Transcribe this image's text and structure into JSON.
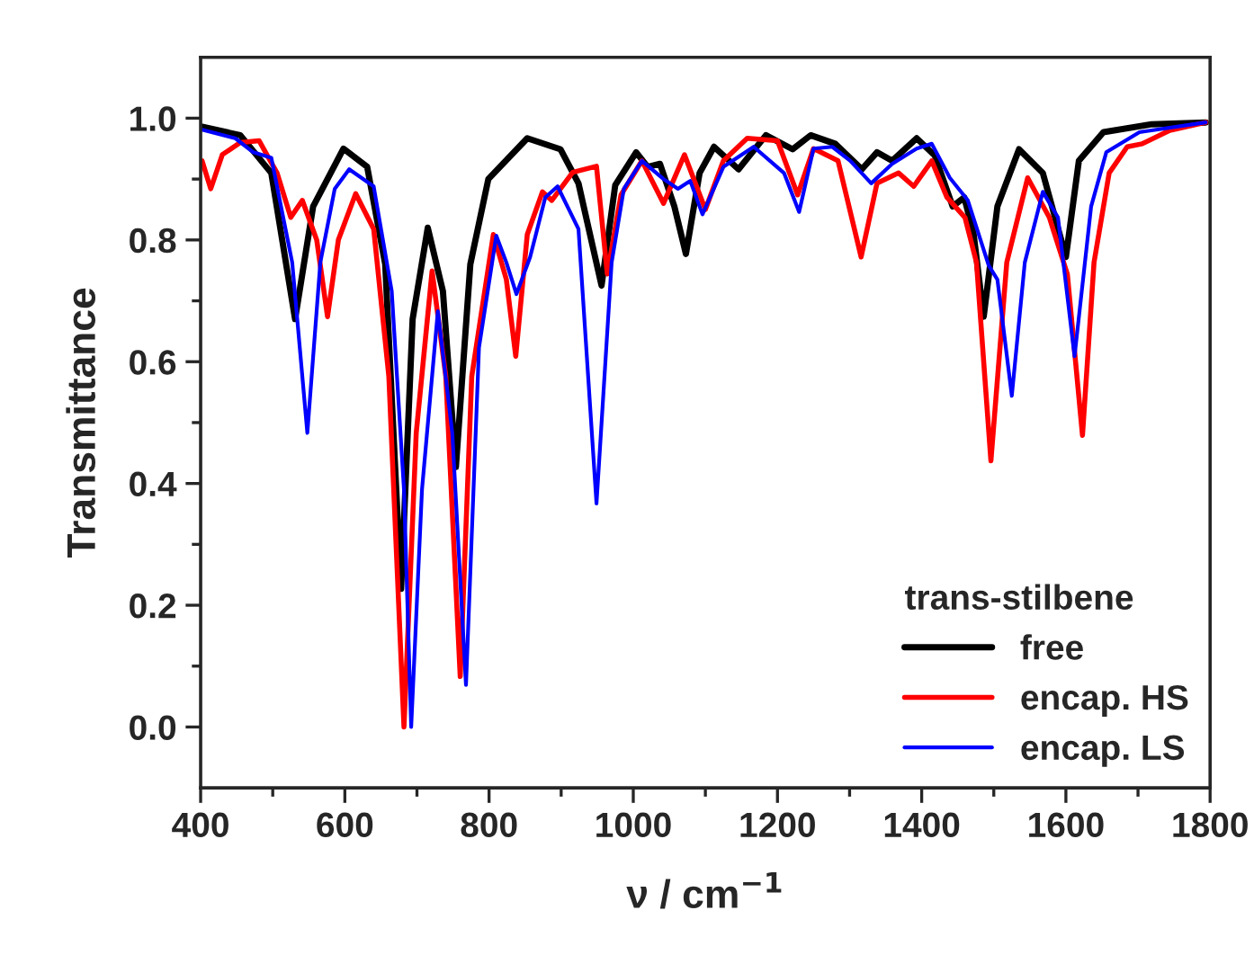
{
  "chart_data": {
    "type": "line",
    "xlabel": "ν / cm$^{−1}$",
    "ylabel": "Transmittance",
    "legend_title": "trans-stilbene",
    "legend": "bottom right",
    "grid": false,
    "xlim": [
      400,
      1800
    ],
    "ylim": [
      -0.1,
      1.1
    ],
    "xticks": [
      400,
      {
        "value": 500,
        "label": null
      },
      600,
      {
        "value": 700,
        "label": null
      },
      800,
      {
        "value": 900,
        "label": null
      },
      1000,
      {
        "value": 1100,
        "label": null
      },
      1200,
      {
        "value": 1300,
        "label": null
      },
      1400,
      {
        "value": 1500,
        "label": null
      },
      1600,
      {
        "value": 1700,
        "label": null
      },
      1800
    ],
    "yticks": [
      {
        "value": 0.0,
        "label": "0.0"
      },
      {
        "value": 0.1,
        "label": null
      },
      {
        "value": 0.2,
        "label": "0.2"
      },
      {
        "value": 0.3,
        "label": null
      },
      {
        "value": 0.4,
        "label": "0.4"
      },
      {
        "value": 0.5,
        "label": null
      },
      {
        "value": 0.6,
        "label": "0.6"
      },
      {
        "value": 0.7,
        "label": null
      },
      {
        "value": 0.8,
        "label": "0.8"
      },
      {
        "value": 0.9,
        "label": null
      },
      {
        "value": 1.0,
        "label": "1.0"
      }
    ],
    "series": [
      {
        "name": "free",
        "color": "#000000",
        "x": [
          402,
          455,
          498,
          531,
          556,
          598,
          631,
          656,
          678,
          694,
          715,
          736,
          754,
          774,
          799,
          853,
          899,
          924,
          956,
          975,
          1004,
          1020,
          1037,
          1057,
          1073,
          1092,
          1112,
          1146,
          1184,
          1221,
          1246,
          1280,
          1317,
          1338,
          1359,
          1393,
          1418,
          1443,
          1459,
          1472,
          1486,
          1505,
          1535,
          1568,
          1600,
          1618,
          1652,
          1719,
          1794
        ],
        "values": [
          0.986,
          0.972,
          0.91,
          0.67,
          0.855,
          0.95,
          0.92,
          0.76,
          0.227,
          0.67,
          0.82,
          0.716,
          0.427,
          0.76,
          0.9,
          0.967,
          0.949,
          0.893,
          0.725,
          0.89,
          0.944,
          0.92,
          0.925,
          0.855,
          0.777,
          0.91,
          0.953,
          0.916,
          0.972,
          0.949,
          0.972,
          0.958,
          0.916,
          0.944,
          0.93,
          0.967,
          0.939,
          0.855,
          0.87,
          0.81,
          0.674,
          0.855,
          0.949,
          0.91,
          0.772,
          0.93,
          0.977,
          0.99,
          0.993
        ]
      },
      {
        "name": "encap. HS",
        "color": "#ff0000",
        "x": [
          402,
          414,
          430,
          455,
          481,
          506,
          525,
          541,
          561,
          576,
          591,
          615,
          640,
          661,
          682,
          699,
          721,
          740,
          760,
          776,
          806,
          824,
          837,
          853,
          874,
          887,
          916,
          949,
          964,
          983,
          1012,
          1042,
          1071,
          1100,
          1125,
          1158,
          1200,
          1228,
          1250,
          1284,
          1316,
          1338,
          1368,
          1389,
          1414,
          1435,
          1460,
          1476,
          1496,
          1518,
          1547,
          1577,
          1602,
          1623,
          1639,
          1660,
          1685,
          1706,
          1744,
          1794
        ],
        "values": [
          0.93,
          0.884,
          0.94,
          0.96,
          0.963,
          0.91,
          0.837,
          0.865,
          0.8,
          0.674,
          0.8,
          0.876,
          0.818,
          0.576,
          0.0,
          0.483,
          0.749,
          0.576,
          0.083,
          0.576,
          0.809,
          0.735,
          0.609,
          0.809,
          0.879,
          0.865,
          0.911,
          0.921,
          0.744,
          0.874,
          0.93,
          0.86,
          0.94,
          0.85,
          0.93,
          0.967,
          0.963,
          0.874,
          0.95,
          0.93,
          0.772,
          0.893,
          0.91,
          0.888,
          0.93,
          0.87,
          0.837,
          0.763,
          0.437,
          0.763,
          0.902,
          0.837,
          0.744,
          0.479,
          0.763,
          0.91,
          0.953,
          0.958,
          0.98,
          0.993
        ]
      },
      {
        "name": "encap. LS",
        "color": "#0000ff",
        "x": [
          402,
          448,
          473,
          498,
          527,
          548,
          566,
          586,
          606,
          640,
          665,
          682,
          692,
          707,
          729,
          749,
          768,
          786,
          810,
          824,
          838,
          857,
          878,
          895,
          924,
          949,
          970,
          987,
          1012,
          1042,
          1062,
          1079,
          1096,
          1125,
          1167,
          1209,
          1230,
          1250,
          1276,
          1301,
          1330,
          1359,
          1393,
          1414,
          1439,
          1464,
          1493,
          1505,
          1525,
          1543,
          1568,
          1589,
          1612,
          1635,
          1656,
          1702,
          1794
        ],
        "values": [
          0.981,
          0.967,
          0.944,
          0.935,
          0.763,
          0.483,
          0.763,
          0.884,
          0.916,
          0.888,
          0.716,
          0.39,
          0.0,
          0.39,
          0.683,
          0.483,
          0.069,
          0.623,
          0.807,
          0.763,
          0.711,
          0.772,
          0.87,
          0.888,
          0.818,
          0.367,
          0.763,
          0.884,
          0.93,
          0.9,
          0.884,
          0.897,
          0.842,
          0.92,
          0.953,
          0.91,
          0.846,
          0.95,
          0.953,
          0.93,
          0.893,
          0.925,
          0.95,
          0.958,
          0.902,
          0.865,
          0.758,
          0.735,
          0.544,
          0.763,
          0.879,
          0.837,
          0.609,
          0.855,
          0.944,
          0.977,
          0.993
        ]
      }
    ]
  }
}
